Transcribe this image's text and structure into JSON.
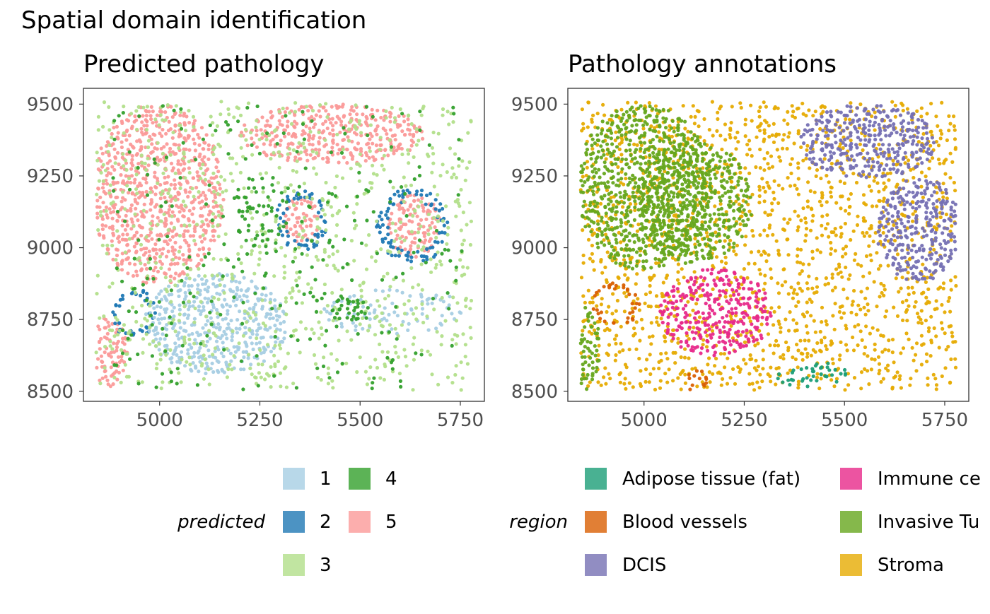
{
  "figure": {
    "title": "Spatial domain identification"
  },
  "chart_data": [
    {
      "type": "scatter",
      "title": "Predicted pathology",
      "xlabel": "",
      "ylabel": "",
      "xlim": [
        4810,
        5810
      ],
      "ylim": [
        8465,
        9555
      ],
      "x_ticks": [
        5000,
        5250,
        5500,
        5750
      ],
      "y_ticks": [
        8500,
        8750,
        9000,
        9250,
        9500
      ],
      "grid": false,
      "legend_placement": "bottom",
      "legend": {
        "title": "predicted",
        "entries": [
          {
            "label": "1",
            "color": "#a6cee3"
          },
          {
            "label": "2",
            "color": "#1f78b4"
          },
          {
            "label": "3",
            "color": "#b2df8a"
          },
          {
            "label": "4",
            "color": "#33a02c"
          },
          {
            "label": "5",
            "color": "#fb9a99"
          }
        ]
      },
      "regions": [
        {
          "category": "5",
          "shape": "blob",
          "x": [
            4830,
            5160
          ],
          "y": [
            8870,
            9500
          ],
          "density": 0.9
        },
        {
          "category": "5",
          "shape": "blob",
          "x": [
            5200,
            5660
          ],
          "y": [
            9290,
            9500
          ],
          "density": 0.9
        },
        {
          "category": "5",
          "shape": "blob",
          "x": [
            5310,
            5400
          ],
          "y": [
            9010,
            9180
          ],
          "density": 0.9
        },
        {
          "category": "5",
          "shape": "blob",
          "x": [
            5570,
            5700
          ],
          "y": [
            8960,
            9190
          ],
          "density": 0.9
        },
        {
          "category": "5",
          "shape": "blob",
          "x": [
            4830,
            4920
          ],
          "y": [
            8510,
            8760
          ],
          "density": 0.9
        },
        {
          "category": "2",
          "shape": "ring",
          "x": [
            4880,
            4990
          ],
          "y": [
            8680,
            8860
          ],
          "density": 0.9
        },
        {
          "category": "2",
          "shape": "ring",
          "x": [
            5540,
            5720
          ],
          "y": [
            8940,
            9210
          ],
          "density": 0.9
        },
        {
          "category": "2",
          "shape": "ring",
          "x": [
            5290,
            5420
          ],
          "y": [
            8990,
            9200
          ],
          "density": 0.9
        },
        {
          "category": "1",
          "shape": "blob",
          "x": [
            4960,
            5320
          ],
          "y": [
            8560,
            8910
          ],
          "density": 0.85
        },
        {
          "category": "1",
          "shape": "blob",
          "x": [
            5400,
            5780
          ],
          "y": [
            8700,
            8860
          ],
          "density": 0.3
        },
        {
          "category": "3",
          "shape": "blob",
          "x": [
            4830,
            5790
          ],
          "y": [
            8500,
            9500
          ],
          "density": 0.18
        },
        {
          "category": "4",
          "shape": "blob",
          "x": [
            5180,
            5320
          ],
          "y": [
            9000,
            9250
          ],
          "density": 0.4
        },
        {
          "category": "4",
          "shape": "blob",
          "x": [
            5430,
            5530
          ],
          "y": [
            8740,
            8830
          ],
          "density": 0.7
        },
        {
          "category": "4",
          "shape": "blob",
          "x": [
            4880,
            5760
          ],
          "y": [
            8500,
            9500
          ],
          "density": 0.06
        }
      ]
    },
    {
      "type": "scatter",
      "title": "Pathology annotations",
      "xlabel": "",
      "ylabel": "",
      "xlim": [
        4810,
        5810
      ],
      "ylim": [
        8465,
        9555
      ],
      "x_ticks": [
        5000,
        5250,
        5500,
        5750
      ],
      "y_ticks": [
        8500,
        8750,
        9000,
        9250,
        9500
      ],
      "grid": false,
      "legend_placement": "bottom",
      "legend": {
        "title": "region",
        "entries": [
          {
            "label": "Adipose tissue (fat)",
            "color": "#1b9e77"
          },
          {
            "label": "Blood vessels",
            "color": "#d95f02"
          },
          {
            "label": "DCIS",
            "color": "#7570b3"
          },
          {
            "label": "Immune ce",
            "color": "#e7298a"
          },
          {
            "label": "Invasive Tu",
            "color": "#66a61e"
          },
          {
            "label": "Stroma",
            "color": "#e6ab02"
          }
        ]
      },
      "regions": [
        {
          "category": "Stroma",
          "shape": "blob",
          "x": [
            4830,
            5790
          ],
          "y": [
            8500,
            9500
          ],
          "density": 0.35
        },
        {
          "category": "Invasive Tu",
          "shape": "blob",
          "x": [
            4830,
            5170
          ],
          "y": [
            8920,
            9500
          ],
          "density": 0.9
        },
        {
          "category": "Invasive Tu",
          "shape": "blob",
          "x": [
            4980,
            5270
          ],
          "y": [
            8940,
            9370
          ],
          "density": 0.9
        },
        {
          "category": "Invasive Tu",
          "shape": "blob",
          "x": [
            4830,
            4890
          ],
          "y": [
            8500,
            8800
          ],
          "density": 0.9
        },
        {
          "category": "DCIS",
          "shape": "blob",
          "x": [
            5390,
            5730
          ],
          "y": [
            9240,
            9500
          ],
          "density": 0.9
        },
        {
          "category": "DCIS",
          "shape": "blob",
          "x": [
            5580,
            5790
          ],
          "y": [
            8880,
            9250
          ],
          "density": 0.9
        },
        {
          "category": "Immune ce",
          "shape": "blob",
          "x": [
            5040,
            5320
          ],
          "y": [
            8620,
            8930
          ],
          "density": 0.85
        },
        {
          "category": "Blood vessels",
          "shape": "ring",
          "x": [
            4870,
            4990
          ],
          "y": [
            8720,
            8880
          ],
          "density": 0.9
        },
        {
          "category": "Blood vessels",
          "shape": "blob",
          "x": [
            5100,
            5160
          ],
          "y": [
            8500,
            8580
          ],
          "density": 0.6
        },
        {
          "category": "Adipose tissue (fat)",
          "shape": "blob",
          "x": [
            5330,
            5520
          ],
          "y": [
            8510,
            8600
          ],
          "density": 0.5
        }
      ]
    }
  ]
}
